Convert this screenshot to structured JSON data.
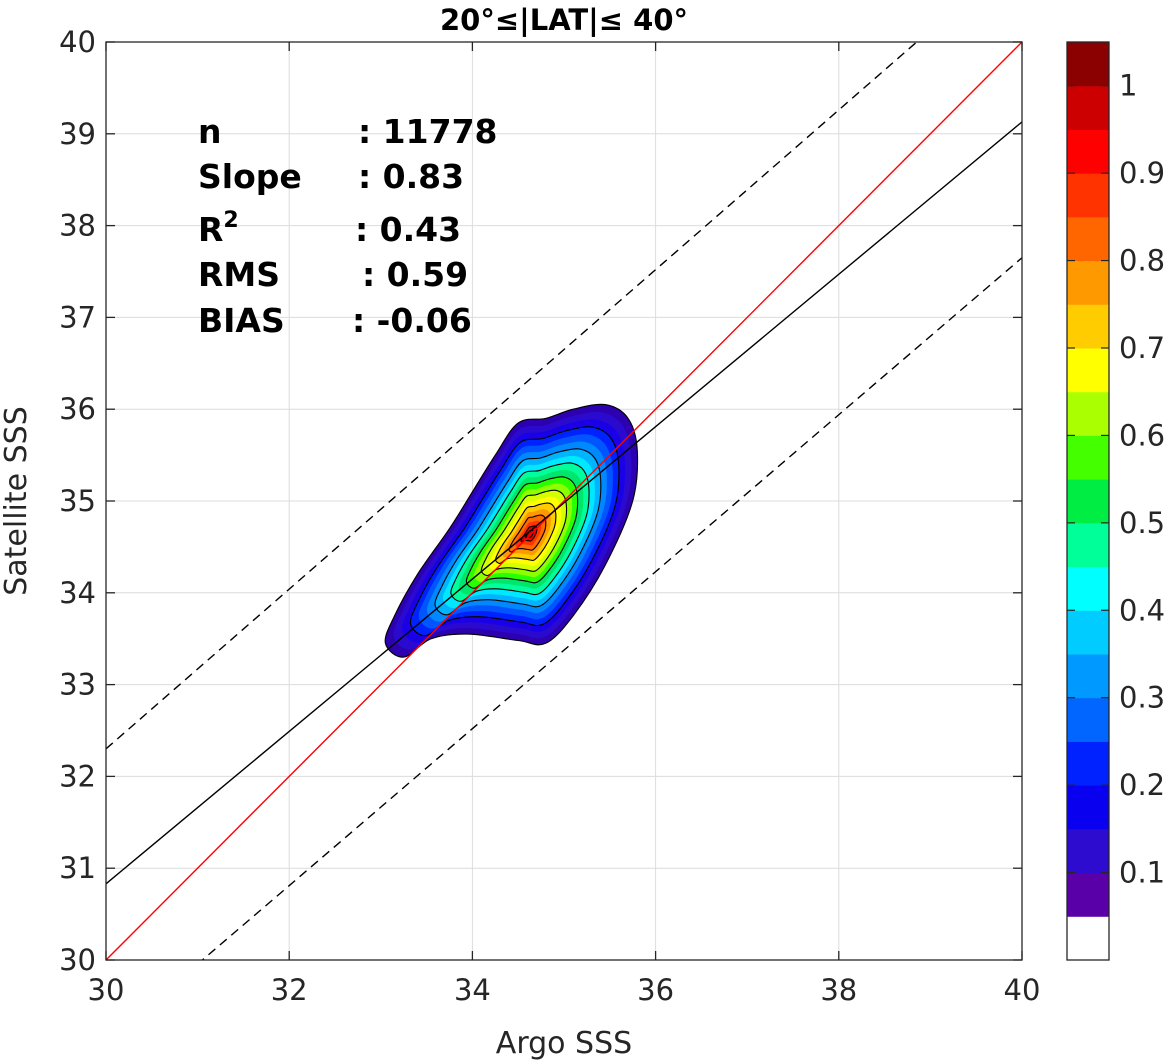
{
  "chart_data": {
    "type": "contour",
    "title": "20°≤|LAT|≤ 40°",
    "xlabel": "Argo SSS",
    "ylabel": "Satellite SSS",
    "xlim": [
      30,
      40
    ],
    "ylim": [
      30,
      40
    ],
    "x_ticks": [
      30,
      32,
      34,
      36,
      38,
      40
    ],
    "y_ticks": [
      30,
      31,
      32,
      33,
      34,
      35,
      36,
      37,
      38,
      39,
      40
    ],
    "grid": true,
    "stats": [
      {
        "label": "n",
        "sep": ": ",
        "value": "11778"
      },
      {
        "label": "Slope",
        "sep": ": ",
        "value": "0.83"
      },
      {
        "label": "R",
        "sup": "2",
        "sep": ": ",
        "value": "0.43"
      },
      {
        "label": "RMS",
        "sep": ": ",
        "value": "0.59"
      },
      {
        "label": "BIAS",
        "sep": ": ",
        "value": "-0.06"
      }
    ],
    "lines": {
      "one_to_one": {
        "x": [
          30,
          40
        ],
        "y": [
          30,
          40
        ],
        "color": "#ff0000",
        "style": "solid"
      },
      "fit": {
        "x": [
          30,
          40
        ],
        "y": [
          30.83,
          39.13
        ],
        "color": "#000000",
        "style": "solid"
      },
      "upper_bound": {
        "x": [
          30,
          40
        ],
        "y": [
          32.3,
          41.0
        ],
        "color": "#000000",
        "style": "dashed"
      },
      "lower_bound": {
        "x": [
          30,
          40
        ],
        "y": [
          29.1,
          37.65
        ],
        "color": "#000000",
        "style": "dashed"
      }
    },
    "density": {
      "center": [
        34.68,
        34.66
      ],
      "levels": [
        0.05,
        0.1,
        0.15,
        0.2,
        0.25,
        0.3,
        0.35,
        0.4,
        0.45,
        0.5,
        0.55,
        0.6,
        0.65,
        0.7,
        0.75,
        0.8,
        0.85,
        0.9,
        0.95
      ],
      "colors": [
        "#2d00b0",
        "#2a0acf",
        "#1a00e6",
        "#0022ff",
        "#0055ff",
        "#0088ff",
        "#00b4ff",
        "#00e8ff",
        "#00ff9c",
        "#00e66a",
        "#28ff00",
        "#8cff00",
        "#d4ff00",
        "#ffff00",
        "#ffcc00",
        "#ff9900",
        "#ff6a00",
        "#ff3300",
        "#ee0000",
        "#cc0000"
      ],
      "contour_lines": [
        0.05,
        0.2,
        0.35,
        0.45,
        0.55,
        0.65,
        0.75,
        0.85,
        0.95
      ],
      "shape": [
        [
          33.25,
          33.3
        ],
        [
          33.55,
          33.5
        ],
        [
          33.95,
          33.55
        ],
        [
          34.5,
          33.48
        ],
        [
          34.8,
          33.45
        ],
        [
          35.1,
          33.75
        ],
        [
          35.45,
          34.3
        ],
        [
          35.75,
          35.0
        ],
        [
          35.8,
          35.55
        ],
        [
          35.7,
          35.9
        ],
        [
          35.45,
          36.05
        ],
        [
          35.1,
          36.0
        ],
        [
          34.8,
          35.9
        ],
        [
          34.5,
          35.85
        ],
        [
          34.25,
          35.5
        ],
        [
          34.0,
          35.1
        ],
        [
          33.75,
          34.7
        ],
        [
          33.4,
          34.2
        ],
        [
          33.15,
          33.75
        ],
        [
          33.05,
          33.45
        ]
      ]
    },
    "colorbar": {
      "range": [
        0,
        1
      ],
      "tick_labels": [
        "1",
        "0.9",
        "0.8",
        "0.7",
        "0.6",
        "0.5",
        "0.4",
        "0.3",
        "0.2",
        "0.1"
      ],
      "tick_values": [
        1,
        0.9,
        0.8,
        0.7,
        0.6,
        0.5,
        0.4,
        0.3,
        0.2,
        0.1
      ],
      "bands": [
        {
          "from": 0.0,
          "to": 0.05,
          "color": "#ffffff"
        },
        {
          "from": 0.05,
          "to": 0.1,
          "color": "#5a00a8"
        },
        {
          "from": 0.1,
          "to": 0.15,
          "color": "#2d0ccf"
        },
        {
          "from": 0.15,
          "to": 0.2,
          "color": "#0a00f0"
        },
        {
          "from": 0.2,
          "to": 0.25,
          "color": "#0022ff"
        },
        {
          "from": 0.25,
          "to": 0.3,
          "color": "#0066ff"
        },
        {
          "from": 0.3,
          "to": 0.35,
          "color": "#0099ff"
        },
        {
          "from": 0.35,
          "to": 0.4,
          "color": "#00ccff"
        },
        {
          "from": 0.4,
          "to": 0.45,
          "color": "#00ffff"
        },
        {
          "from": 0.45,
          "to": 0.5,
          "color": "#00ff99"
        },
        {
          "from": 0.5,
          "to": 0.55,
          "color": "#00ee44"
        },
        {
          "from": 0.55,
          "to": 0.6,
          "color": "#44ff00"
        },
        {
          "from": 0.6,
          "to": 0.65,
          "color": "#aaff00"
        },
        {
          "from": 0.65,
          "to": 0.7,
          "color": "#ffff00"
        },
        {
          "from": 0.7,
          "to": 0.75,
          "color": "#ffcc00"
        },
        {
          "from": 0.75,
          "to": 0.8,
          "color": "#ff9900"
        },
        {
          "from": 0.8,
          "to": 0.85,
          "color": "#ff6600"
        },
        {
          "from": 0.85,
          "to": 0.9,
          "color": "#ff3300"
        },
        {
          "from": 0.9,
          "to": 0.95,
          "color": "#ff0000"
        },
        {
          "from": 0.95,
          "to": 1.0,
          "color": "#cc0000"
        },
        {
          "from": 1.0,
          "to": 1.05,
          "color": "#8b0000"
        }
      ]
    }
  }
}
